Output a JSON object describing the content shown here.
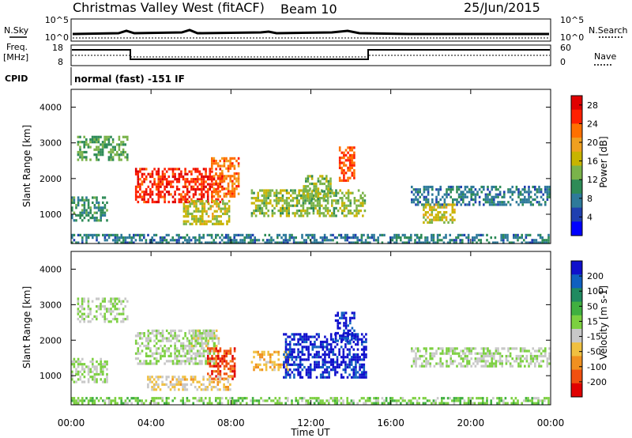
{
  "header": {
    "title": "Christmas Valley West (fitACF)",
    "beam": "Beam 10",
    "date": "25/Jun/2015"
  },
  "top_panels": {
    "nsky_label": "N.Sky",
    "nsky_ticks": [
      "10^5",
      "10^0"
    ],
    "nsearch_label": "N.Search",
    "nsearch_ticks": [
      "10^5",
      "10^0"
    ],
    "freq_label": [
      "Freq.",
      "[MHz]"
    ],
    "freq_ticks": [
      "18",
      "8"
    ],
    "nave_label": "Nave",
    "nave_ticks": [
      "60",
      "0"
    ],
    "cpid_label": "CPID",
    "cpid_text": "normal (fast) -151 IF"
  },
  "colors": {
    "power": [
      "#0000ff",
      "#1f3fb0",
      "#2e7a9a",
      "#2e8b57",
      "#7ab34a",
      "#c8b400",
      "#f0a020",
      "#ff7000",
      "#ff2000",
      "#e00000"
    ],
    "velocity": [
      "#1010cc",
      "#1060c0",
      "#208a60",
      "#40b040",
      "#7cd040",
      "#c8c8c8",
      "#f0c040",
      "#f09020",
      "#f05010",
      "#e00000"
    ]
  },
  "chart_data": [
    {
      "type": "heatmap",
      "title": "Power",
      "xlabel": "Time UT",
      "ylabel": "Slant Range [km]",
      "xlim": [
        "00:00",
        "24:00"
      ],
      "ylim": [
        180,
        4500
      ],
      "x_ticks": [
        "00:00",
        "04:00",
        "08:00",
        "12:00",
        "16:00",
        "20:00",
        "00:00"
      ],
      "y_ticks": [
        1000,
        2000,
        3000,
        4000
      ],
      "colorbar": {
        "label": "Power [dB]",
        "ticks": [
          4,
          8,
          12,
          16,
          20,
          24,
          28
        ],
        "range": [
          0,
          30
        ]
      },
      "regions": [
        {
          "t": [
            0.0,
            1.8
          ],
          "r": [
            800,
            1500
          ],
          "value": 10
        },
        {
          "t": [
            0.3,
            2.9
          ],
          "r": [
            2500,
            3200
          ],
          "value": 12
        },
        {
          "t": [
            3.2,
            7.6
          ],
          "r": [
            1300,
            2300
          ],
          "value": 26
        },
        {
          "t": [
            7.0,
            8.4
          ],
          "r": [
            1500,
            2600
          ],
          "value": 22
        },
        {
          "t": [
            5.6,
            8.0
          ],
          "r": [
            700,
            1400
          ],
          "value": 16
        },
        {
          "t": [
            9.0,
            14.8
          ],
          "r": [
            900,
            1700
          ],
          "value": 14
        },
        {
          "t": [
            11.6,
            13.0
          ],
          "r": [
            1400,
            2100
          ],
          "value": 14
        },
        {
          "t": [
            13.4,
            14.2
          ],
          "r": [
            1900,
            2900
          ],
          "value": 24
        },
        {
          "t": [
            17.0,
            24.0
          ],
          "r": [
            1200,
            1800
          ],
          "value": 8
        },
        {
          "t": [
            17.6,
            19.2
          ],
          "r": [
            700,
            1300
          ],
          "value": 16
        },
        {
          "t": [
            0.0,
            24.0
          ],
          "r": [
            200,
            450
          ],
          "value": 8
        }
      ]
    },
    {
      "type": "heatmap",
      "title": "Velocity",
      "xlabel": "Time UT",
      "ylabel": "Slant Range [km]",
      "xlim": [
        "00:00",
        "24:00"
      ],
      "ylim": [
        180,
        4500
      ],
      "x_ticks": [
        "00:00",
        "04:00",
        "08:00",
        "12:00",
        "16:00",
        "20:00",
        "00:00"
      ],
      "y_ticks": [
        1000,
        2000,
        3000,
        4000
      ],
      "colorbar": {
        "label": "Velocity [m s-1]",
        "ticks": [
          200,
          100,
          50,
          15,
          -15,
          -50,
          -100,
          -200
        ],
        "range": [
          -250,
          250
        ]
      },
      "regions": [
        {
          "t": [
            0.0,
            1.8
          ],
          "r": [
            800,
            1500
          ],
          "value": 0
        },
        {
          "t": [
            0.3,
            2.9
          ],
          "r": [
            2500,
            3200
          ],
          "value": 0
        },
        {
          "t": [
            3.2,
            7.2
          ],
          "r": [
            1300,
            2300
          ],
          "value": 0
        },
        {
          "t": [
            6.0,
            7.4
          ],
          "r": [
            1800,
            2300
          ],
          "value": -30
        },
        {
          "t": [
            6.8,
            8.2
          ],
          "r": [
            900,
            1800
          ],
          "value": -180
        },
        {
          "t": [
            3.8,
            8.0
          ],
          "r": [
            600,
            1000
          ],
          "value": -60
        },
        {
          "t": [
            9.0,
            11.0
          ],
          "r": [
            1100,
            1700
          ],
          "value": -90
        },
        {
          "t": [
            10.6,
            14.8
          ],
          "r": [
            900,
            2200
          ],
          "value": 220
        },
        {
          "t": [
            13.2,
            14.2
          ],
          "r": [
            1900,
            2800
          ],
          "value": 220
        },
        {
          "t": [
            17.0,
            24.0
          ],
          "r": [
            1200,
            1800
          ],
          "value": 0
        },
        {
          "t": [
            0.0,
            24.0
          ],
          "r": [
            200,
            400
          ],
          "value": 30
        }
      ]
    }
  ]
}
